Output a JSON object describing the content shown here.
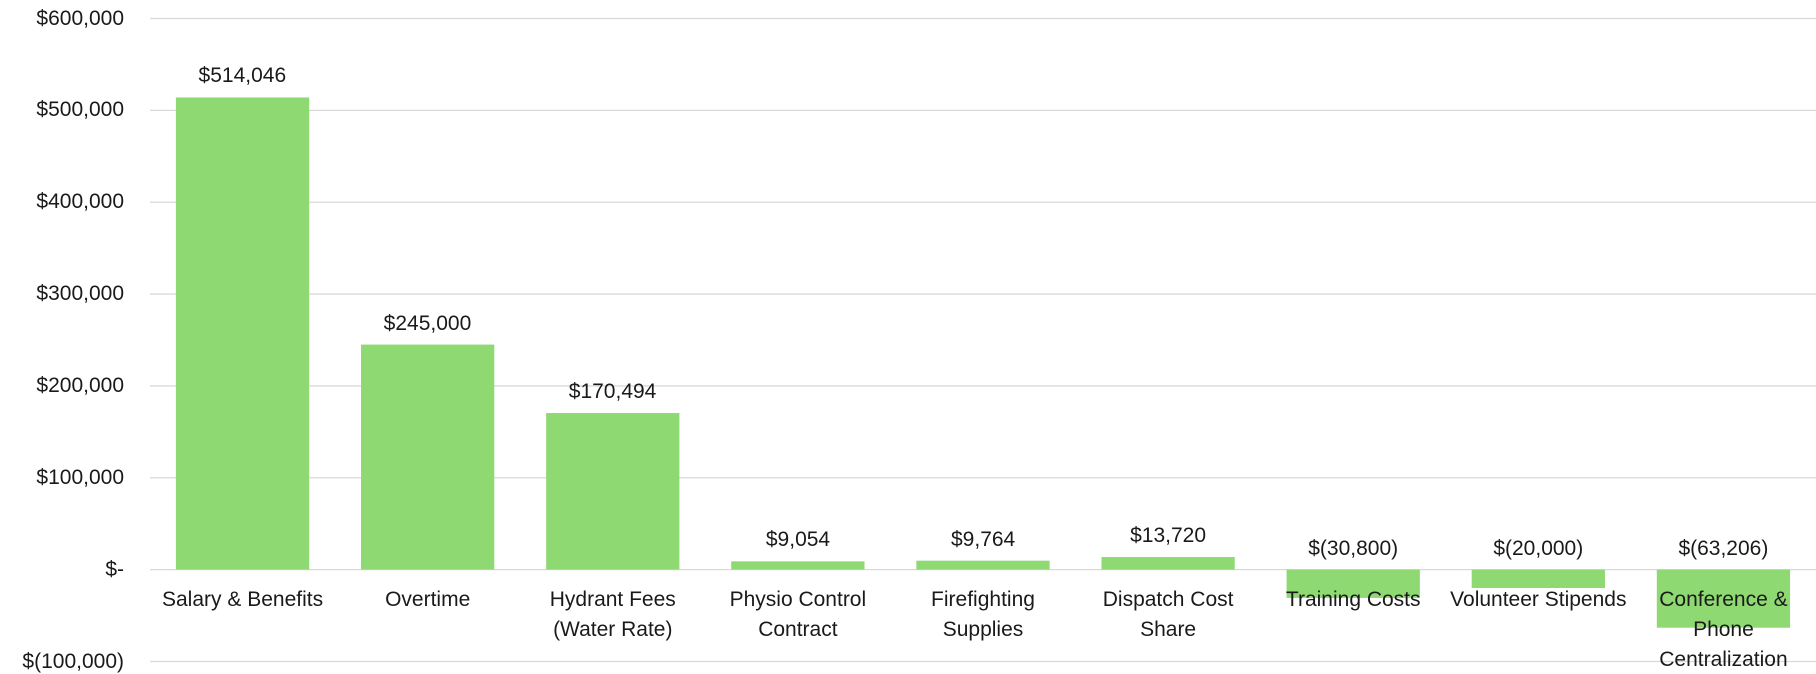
{
  "chart_data": {
    "type": "bar",
    "categories": [
      "Salary & Benefits",
      "Overtime",
      "Hydrant Fees (Water Rate)",
      "Physio Control Contract",
      "Firefighting Supplies",
      "Dispatch Cost Share",
      "Training Costs",
      "Volunteer Stipends",
      "Conference & Phone Centralization"
    ],
    "values": [
      514046,
      245000,
      170494,
      9054,
      9764,
      13720,
      -30800,
      -20000,
      -63206
    ],
    "value_labels": [
      "$514,046",
      "$245,000",
      "$170,494",
      "$9,054",
      "$9,764",
      "$13,720",
      "$(30,800)",
      "$(20,000)",
      "$(63,206)"
    ],
    "color": "#8fd973",
    "ylim": [
      -100000,
      600000
    ],
    "yticks": [
      {
        "value": -100000,
        "label": "$(100,000)"
      },
      {
        "value": 0,
        "label": "$-"
      },
      {
        "value": 100000,
        "label": "$100,000"
      },
      {
        "value": 200000,
        "label": "$200,000"
      },
      {
        "value": 300000,
        "label": "$300,000"
      },
      {
        "value": 400000,
        "label": "$400,000"
      },
      {
        "value": 500000,
        "label": "$500,000"
      },
      {
        "value": 600000,
        "label": "$600,000"
      }
    ],
    "grid": true
  }
}
